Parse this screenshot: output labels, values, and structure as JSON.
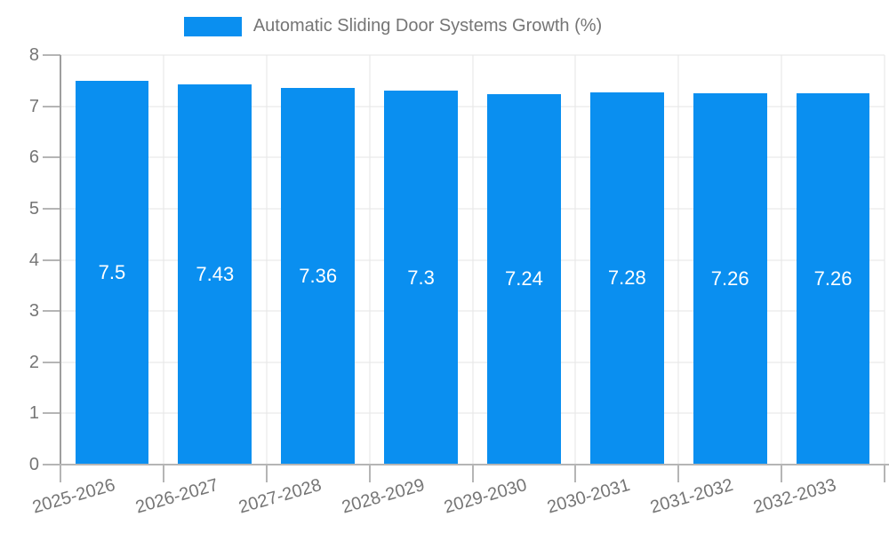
{
  "chart_data": {
    "type": "bar",
    "legend": {
      "position": "top",
      "label": "Automatic Sliding Door Systems Growth (%)"
    },
    "categories": [
      "2025-2026",
      "2026-2027",
      "2027-2028",
      "2028-2029",
      "2029-2030",
      "2030-2031",
      "2031-2032",
      "2032-2033"
    ],
    "values": [
      7.5,
      7.43,
      7.36,
      7.3,
      7.24,
      7.28,
      7.26,
      7.26
    ],
    "bar_value_labels": [
      "7.5",
      "7.43",
      "7.36",
      "7.3",
      "7.24",
      "7.28",
      "7.26",
      "7.26"
    ],
    "xlabel": "",
    "ylabel": "",
    "ylim": [
      0,
      8
    ],
    "yticks": [
      0,
      1,
      2,
      3,
      4,
      5,
      6,
      7,
      8
    ],
    "grid": true,
    "x_tick_rotation_deg": -16,
    "colors": {
      "bar": "#0a8ff0",
      "gridline": "#e6e6e6",
      "axis_line": "#9e9e9e",
      "tick_mark": "#b5b5b5",
      "tick_text": "#757575",
      "bar_label_text": "#ffffff",
      "background": "#ffffff"
    }
  }
}
